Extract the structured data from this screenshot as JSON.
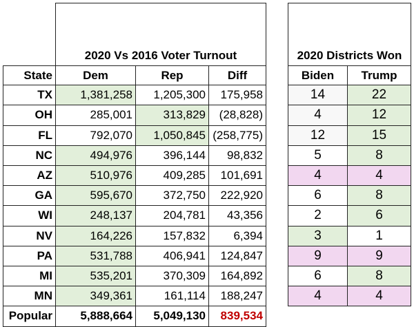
{
  "turnout": {
    "title": "2020 Vs 2016 Voter Turnout",
    "headers": [
      "State",
      "Dem",
      "Rep",
      "Diff"
    ],
    "rows": [
      {
        "state": "TX",
        "dem": "1,381,258",
        "rep": "1,205,300",
        "diff": "175,958",
        "highlight": "dem"
      },
      {
        "state": "OH",
        "dem": "285,001",
        "rep": "313,829",
        "diff": "(28,828)",
        "highlight": "rep"
      },
      {
        "state": "FL",
        "dem": "792,070",
        "rep": "1,050,845",
        "diff": "(258,775)",
        "highlight": "rep"
      },
      {
        "state": "NC",
        "dem": "494,976",
        "rep": "396,144",
        "diff": "98,832",
        "highlight": "dem"
      },
      {
        "state": "AZ",
        "dem": "510,976",
        "rep": "409,285",
        "diff": "101,691",
        "highlight": "dem"
      },
      {
        "state": "GA",
        "dem": "595,670",
        "rep": "372,750",
        "diff": "222,920",
        "highlight": "dem"
      },
      {
        "state": "WI",
        "dem": "248,137",
        "rep": "204,781",
        "diff": "43,356",
        "highlight": "dem"
      },
      {
        "state": "NV",
        "dem": "164,226",
        "rep": "157,832",
        "diff": "6,394",
        "highlight": "dem"
      },
      {
        "state": "PA",
        "dem": "531,788",
        "rep": "406,941",
        "diff": "124,847",
        "highlight": "dem"
      },
      {
        "state": "MI",
        "dem": "535,201",
        "rep": "370,309",
        "diff": "164,892",
        "highlight": "dem"
      },
      {
        "state": "MN",
        "dem": "349,361",
        "rep": "161,114",
        "diff": "188,247",
        "highlight": "dem"
      }
    ],
    "total": {
      "label": "Popular",
      "dem": "5,888,664",
      "rep": "5,049,130",
      "diff": "839,534"
    }
  },
  "districts": {
    "title": "2020 Districts Won",
    "headers": [
      "Biden",
      "Trump"
    ],
    "rows": [
      {
        "biden": "14",
        "trump": "22",
        "biden_bg": "gray",
        "trump_bg": "green"
      },
      {
        "biden": "4",
        "trump": "12",
        "biden_bg": "gray",
        "trump_bg": "green"
      },
      {
        "biden": "12",
        "trump": "15",
        "biden_bg": "gray",
        "trump_bg": "green"
      },
      {
        "biden": "5",
        "trump": "8",
        "biden_bg": "none",
        "trump_bg": "green"
      },
      {
        "biden": "4",
        "trump": "4",
        "biden_bg": "pink",
        "trump_bg": "pink"
      },
      {
        "biden": "6",
        "trump": "8",
        "biden_bg": "none",
        "trump_bg": "green"
      },
      {
        "biden": "2",
        "trump": "6",
        "biden_bg": "none",
        "trump_bg": "green"
      },
      {
        "biden": "3",
        "trump": "1",
        "biden_bg": "green",
        "trump_bg": "none"
      },
      {
        "biden": "9",
        "trump": "9",
        "biden_bg": "pink",
        "trump_bg": "pink"
      },
      {
        "biden": "6",
        "trump": "8",
        "biden_bg": "none",
        "trump_bg": "green"
      },
      {
        "biden": "4",
        "trump": "4",
        "biden_bg": "pink",
        "trump_bg": "pink"
      }
    ]
  },
  "colors": {
    "green": "#e2efda",
    "pink": "#f2d7f0",
    "gray": "#f8f8f8",
    "diff_total": "#c00000"
  }
}
